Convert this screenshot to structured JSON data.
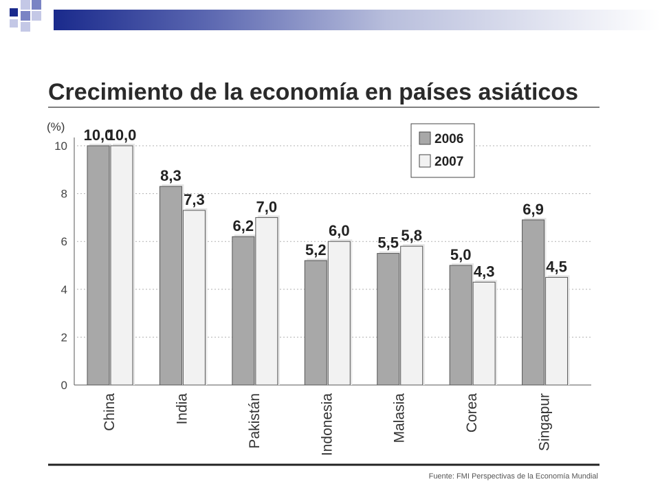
{
  "slide": {
    "accent_dark": "#1a2a8c",
    "accent_mid": "#7a84c4",
    "accent_light": "#c4c8e6"
  },
  "chart_data": {
    "type": "bar",
    "title": "Crecimiento de la economía en países asiáticos",
    "unit_label": "(%)",
    "xlabel": "",
    "ylabel": "",
    "ylim": [
      0,
      10
    ],
    "yticks": [
      "0",
      "2",
      "4",
      "6",
      "8",
      "10"
    ],
    "grid": true,
    "legend_position": "top-right",
    "categories": [
      "China",
      "India",
      "Pakistán",
      "Indonesia",
      "Malasia",
      "Corea",
      "Singapur"
    ],
    "series": [
      {
        "name": "2006",
        "color": "#a8a8a8",
        "values": [
          10.0,
          8.3,
          6.2,
          5.2,
          5.5,
          5.0,
          6.9
        ],
        "labels": [
          "10,0",
          "8,3",
          "6,2",
          "5,2",
          "5,5",
          "5,0",
          "6,9"
        ]
      },
      {
        "name": "2007",
        "color": "#f2f2f2",
        "values": [
          10.0,
          7.3,
          7.0,
          6.0,
          5.8,
          4.3,
          4.5
        ],
        "labels": [
          "10,0",
          "7,3",
          "7,0",
          "6,0",
          "5,8",
          "4,3",
          "4,5"
        ]
      }
    ],
    "source": "Fuente: FMI Perspectivas de la Economía Mundial"
  }
}
